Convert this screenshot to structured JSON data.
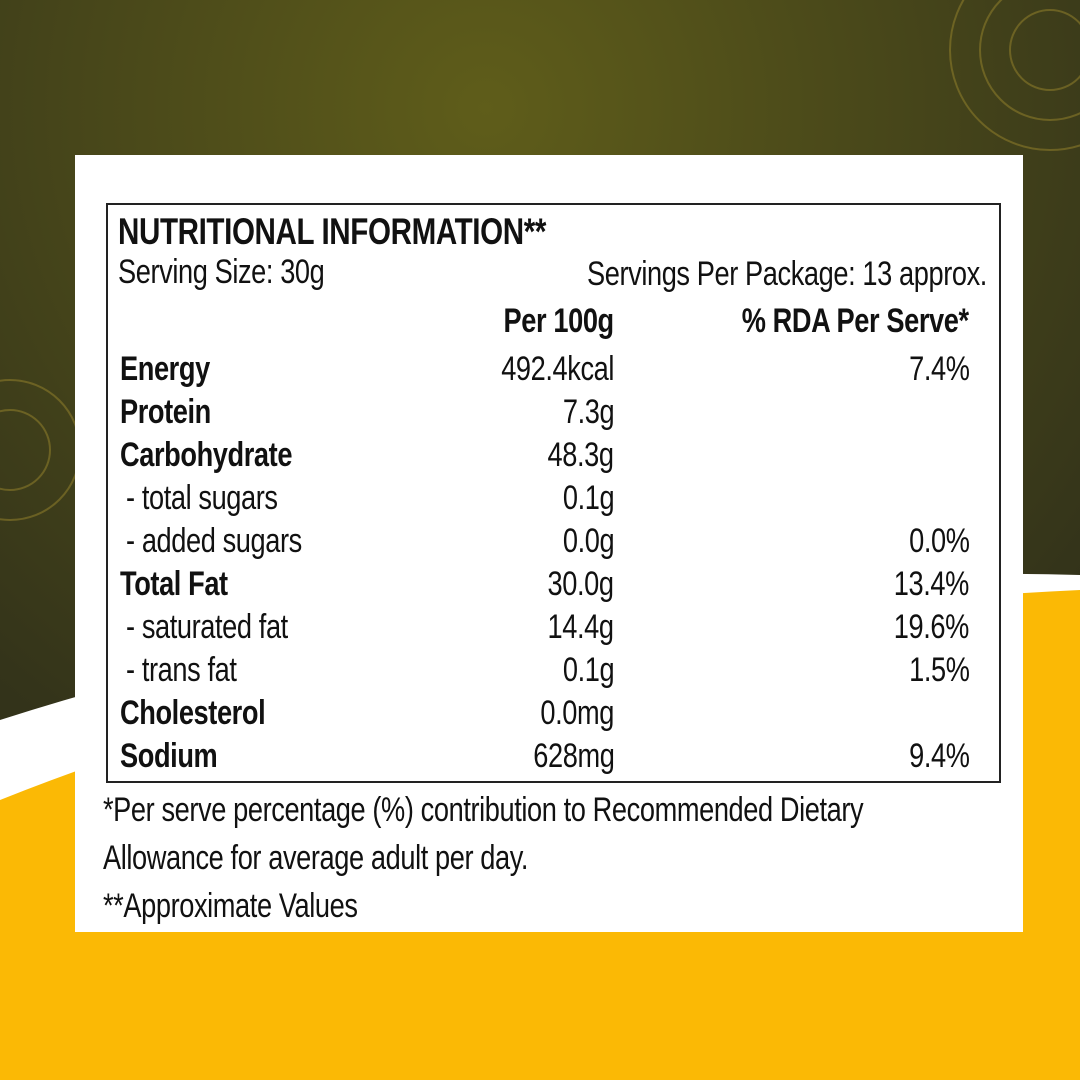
{
  "title": "NUTRITIONAL INFORMATION**",
  "serving_size": "Serving Size: 30g",
  "servings_per_package": "Servings Per Package: 13 approx.",
  "columns": {
    "per100": "Per 100g",
    "rda": "% RDA Per Serve*"
  },
  "rows": [
    {
      "label": "Energy",
      "per100": "492.4kcal",
      "rda": "7.4%",
      "bold": true
    },
    {
      "label": "Protein",
      "per100": "7.3g",
      "rda": "",
      "bold": true
    },
    {
      "label": "Carbohydrate",
      "per100": "48.3g",
      "rda": "",
      "bold": true
    },
    {
      "label": "- total sugars",
      "per100": "0.1g",
      "rda": "",
      "bold": false
    },
    {
      "label": "- added sugars",
      "per100": "0.0g",
      "rda": "0.0%",
      "bold": false
    },
    {
      "label": "Total Fat",
      "per100": "30.0g",
      "rda": "13.4%",
      "bold": true
    },
    {
      "label": "- saturated fat",
      "per100": "14.4g",
      "rda": "19.6%",
      "bold": false
    },
    {
      "label": "- trans fat",
      "per100": "0.1g",
      "rda": "1.5%",
      "bold": false
    },
    {
      "label": "Cholesterol",
      "per100": "0.0mg",
      "rda": "",
      "bold": true
    },
    {
      "label": "Sodium",
      "per100": "628mg",
      "rda": "9.4%",
      "bold": true
    }
  ],
  "footnotes": [
    "*Per serve percentage (%) contribution to Recommended  Dietary",
    "Allowance for average adult per day.",
    "**Approximate Values"
  ],
  "colors": {
    "olive": "#4a4a1c",
    "yellow": "#fbb905",
    "white": "#ffffff"
  }
}
